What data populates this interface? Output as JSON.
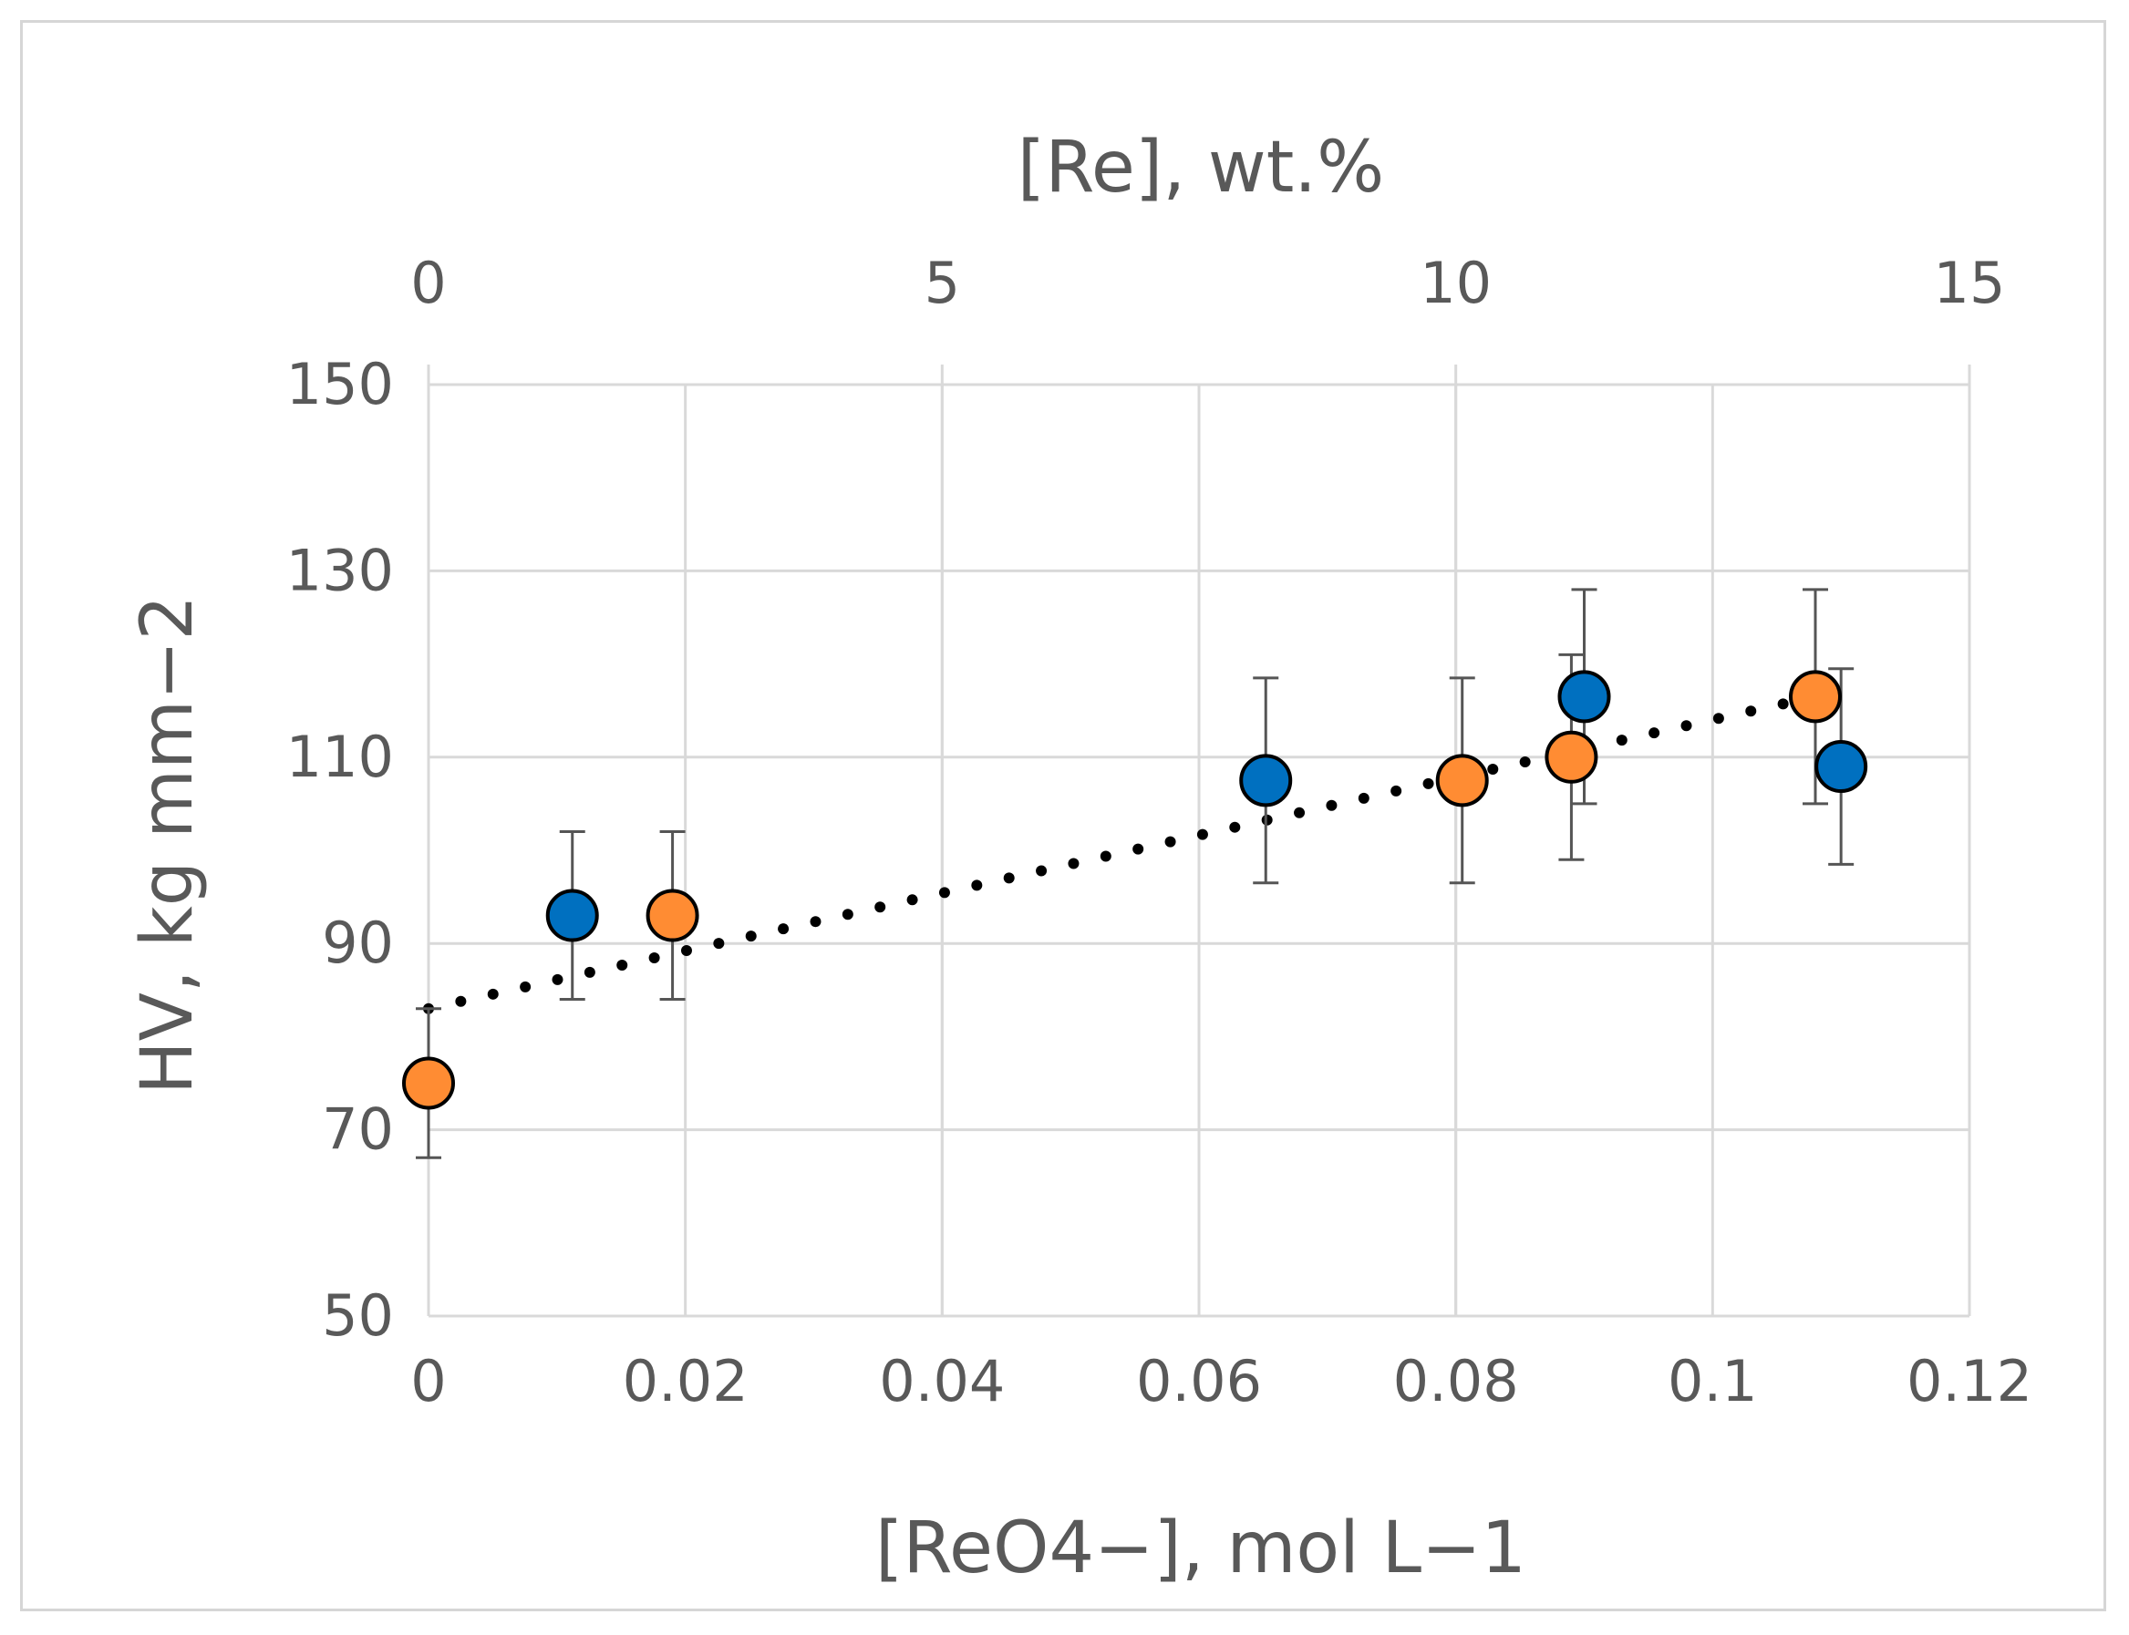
{
  "chart_data": {
    "type": "scatter",
    "title": "",
    "xlabel": "[ReO4−], mol L−1",
    "x2label": "[Re], wt.%",
    "ylabel": "HV, kg mm−2",
    "x_ticks": [
      "0",
      "0.02",
      "0.04",
      "0.06",
      "0.08",
      "0.1",
      "0.12"
    ],
    "x2_ticks": [
      "0",
      "5",
      "10",
      "15"
    ],
    "y_ticks": [
      "50",
      "70",
      "90",
      "110",
      "130",
      "150"
    ],
    "xlim": [
      0,
      0.12
    ],
    "x2lim": [
      0,
      15
    ],
    "ylim": [
      50,
      150
    ],
    "grid": true,
    "series": [
      {
        "name": "[Re], wt.%",
        "axis": "top",
        "color": "#0070c0",
        "points": [
          {
            "x": 1.4,
            "y": 93,
            "err": 9
          },
          {
            "x": 8.15,
            "y": 107.5,
            "err": 11
          },
          {
            "x": 11.25,
            "y": 116.5,
            "err": 11.5
          },
          {
            "x": 13.75,
            "y": 109,
            "err": 10.5
          }
        ]
      },
      {
        "name": "[ReO4−], mol L−1",
        "axis": "bottom",
        "color": "#ff8c33",
        "points": [
          {
            "x": 0,
            "y": 75,
            "err": 8
          },
          {
            "x": 0.019,
            "y": 93,
            "err": 9
          },
          {
            "x": 0.0805,
            "y": 107.5,
            "err": 11
          },
          {
            "x": 0.089,
            "y": 110,
            "err": 11
          },
          {
            "x": 0.108,
            "y": 116.5,
            "err": 11.5
          }
        ]
      }
    ],
    "trendline": {
      "type": "linear",
      "style": "dotted",
      "color": "#000000",
      "x_start": 0,
      "y_start": 83,
      "x_end": 0.108,
      "y_end": 116.5
    }
  }
}
